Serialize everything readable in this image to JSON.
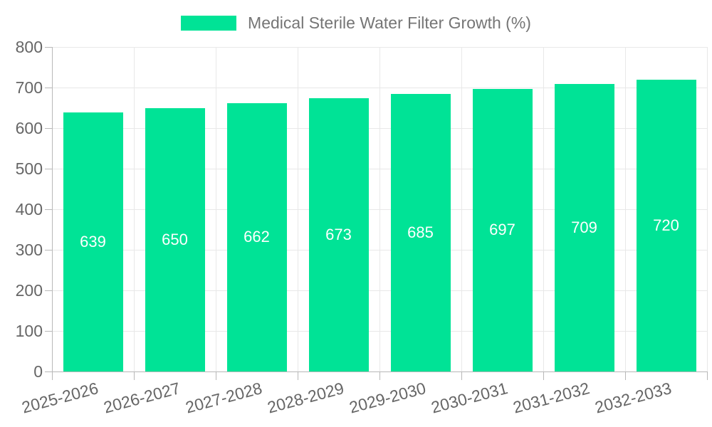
{
  "chart_data": {
    "type": "bar",
    "title": "Medical Sterile Water Filter Growth (%)",
    "legend": {
      "label": "Medical Sterile Water Filter Growth (%)",
      "position": "top-center"
    },
    "categories": [
      "2025-2026",
      "2026-2027",
      "2027-2028",
      "2028-2029",
      "2029-2030",
      "2030-2031",
      "2031-2032",
      "2032-2033"
    ],
    "series": [
      {
        "name": "Medical Sterile Water Filter Growth (%)",
        "values": [
          639,
          650,
          662,
          673,
          685,
          697,
          709,
          720
        ]
      }
    ],
    "xlabel": "",
    "ylabel": "",
    "ylim": [
      0,
      800
    ],
    "yticks": [
      0,
      100,
      200,
      300,
      400,
      500,
      600,
      700,
      800
    ],
    "grid": {
      "horizontal": true,
      "vertical": true
    },
    "bar_value_labels_inside": true,
    "colors": {
      "bar": "#00E396",
      "bar_label": "#ffffff",
      "axis_label": "#666666",
      "legend_text": "#757575",
      "gridline": "#e8e8e8",
      "axis_line": "#b8b8b8",
      "background": "#ffffff"
    }
  }
}
